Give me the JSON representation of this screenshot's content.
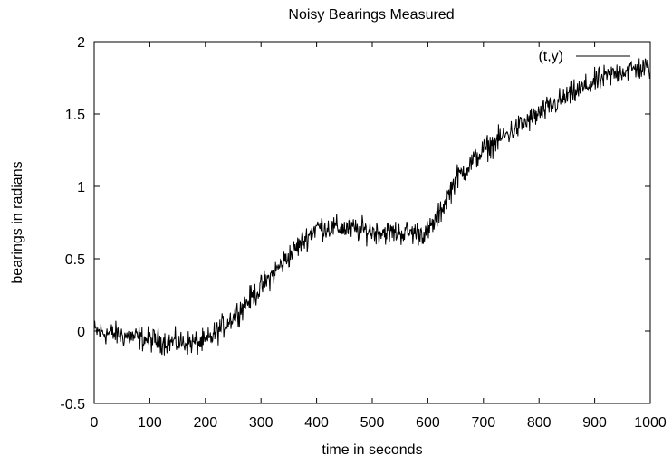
{
  "chart_data": {
    "type": "line",
    "title": "Noisy Bearings Measured",
    "xlabel": "time in seconds",
    "ylabel": "bearings in radians",
    "xlim": [
      0,
      1000
    ],
    "ylim": [
      -0.5,
      2
    ],
    "x_ticks": [
      0,
      100,
      200,
      300,
      400,
      500,
      600,
      700,
      800,
      900,
      1000
    ],
    "x_tick_labels": [
      "0",
      "100",
      "200",
      "300",
      "400",
      "500",
      "600",
      "700",
      "800",
      "900",
      "1000"
    ],
    "y_ticks": [
      -0.5,
      0,
      0.5,
      1,
      1.5,
      2
    ],
    "y_tick_labels": [
      "-0.5",
      "0",
      "0.5",
      "1",
      "1.5",
      "2"
    ],
    "grid": false,
    "legend_position": "top-right",
    "line_color": "#000000",
    "noise_amplitude": 0.06,
    "series": [
      {
        "name": "(t,y)",
        "x": [
          0,
          50,
          100,
          150,
          200,
          250,
          300,
          350,
          380,
          400,
          450,
          500,
          550,
          600,
          620,
          650,
          700,
          750,
          800,
          850,
          900,
          950,
          1000
        ],
        "y": [
          0.0,
          -0.03,
          -0.06,
          -0.08,
          -0.08,
          0.1,
          0.3,
          0.52,
          0.64,
          0.72,
          0.71,
          0.69,
          0.68,
          0.68,
          0.8,
          1.05,
          1.25,
          1.38,
          1.5,
          1.62,
          1.72,
          1.8,
          1.82
        ]
      }
    ]
  }
}
